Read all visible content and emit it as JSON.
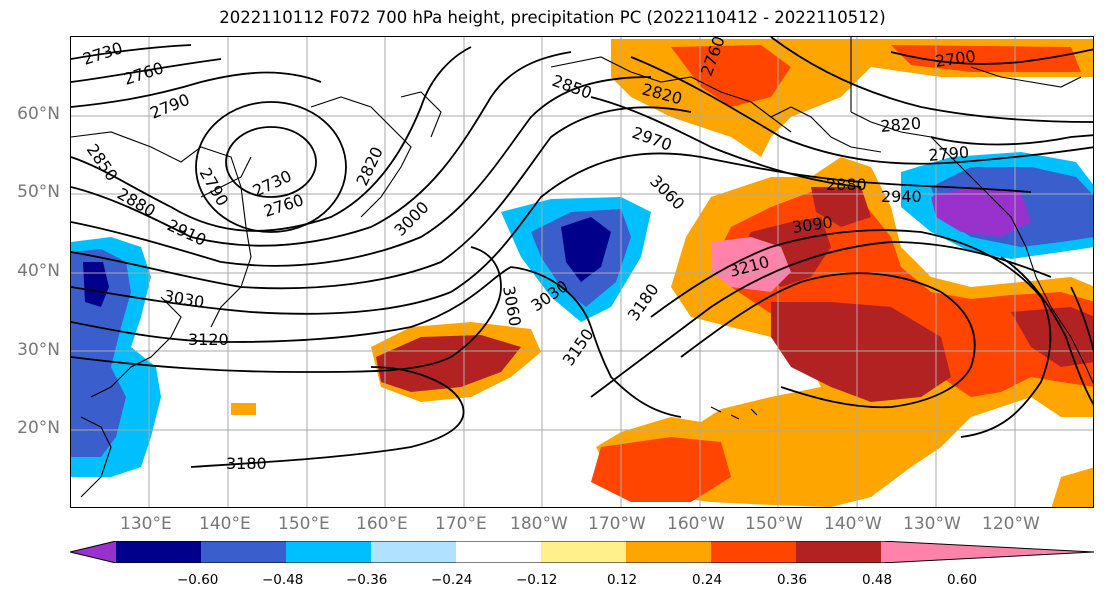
{
  "title": "2022110112 F072 700 hPa height, precipitation PC (2022110412 - 2022110512)",
  "lat_labels": [
    "60°N",
    "50°N",
    "40°N",
    "30°N",
    "20°N"
  ],
  "lon_labels": [
    "130°E",
    "140°E",
    "150°E",
    "160°E",
    "170°E",
    "180°W",
    "170°W",
    "160°W",
    "150°W",
    "140°W",
    "130°W",
    "120°W"
  ],
  "contour_labels": {
    "h2730a": "2730",
    "h2760a": "2760",
    "h2790a": "2790",
    "h2850a": "2850",
    "h2880a": "2880",
    "h2910a": "2910",
    "h2730b": "2730",
    "h2760b": "2760",
    "h2790b": "2790",
    "h2820a": "2820",
    "h3000a": "3000",
    "h3030a": "3030",
    "h3030b": "3030",
    "h3060a": "3060",
    "h3060b": "3060",
    "h3120a": "3120",
    "h3150a": "3150",
    "h3180a": "3180",
    "h3180b": "3180",
    "h3210a": "3210",
    "h2850b": "2850",
    "h2820b": "2820",
    "h2970a": "2970",
    "h2760c": "2760",
    "h2700a": "2700",
    "h2820c": "2820",
    "h2790c": "2790",
    "h2880b": "2880",
    "h2940a": "2940",
    "h3090a": "3090"
  },
  "colorbar": {
    "colors": [
      "#9932cc",
      "#00008b",
      "#3a5fcd",
      "#00bfff",
      "#b0e2ff",
      "#ffffff",
      "#fff08c",
      "#ffa500",
      "#ff4500",
      "#b22222",
      "#ff82ab"
    ],
    "tick_labels": [
      "−0.60",
      "−0.48",
      "−0.36",
      "−0.24",
      "−0.12",
      "0.12",
      "0.24",
      "0.36",
      "0.48",
      "0.60"
    ]
  }
}
